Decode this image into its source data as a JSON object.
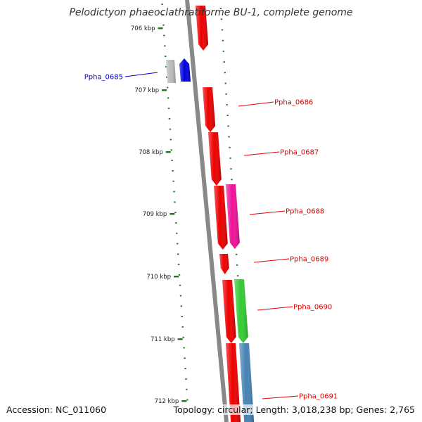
{
  "title": "Pelodictyon phaeoclathratiforme BU-1, complete genome",
  "accession": "Accession: NC_011060",
  "topology": "Topology: circular; Length: 3,018,238 bp; Genes: 2,765",
  "colors": {
    "backbone": "#888888",
    "tick": "#1a7a1a",
    "label_red": "#dd0000",
    "label_blue": "#0000cc"
  },
  "ticks": [
    "706 kbp",
    "707 kbp",
    "708 kbp",
    "709 kbp",
    "710 kbp",
    "711 kbp",
    "712 kbp"
  ],
  "genes": [
    {
      "label": "",
      "color": "#ee0000"
    },
    {
      "label": "",
      "color": "#bbbbbb"
    },
    {
      "label": "Ppha_0685",
      "color": "#0000dd",
      "label_color": "#0000cc"
    },
    {
      "label": "Ppha_0686",
      "color": "#ee0000",
      "label_color": "#dd0000"
    },
    {
      "label": "Ppha_0687",
      "color": "#ee0000",
      "label_color": "#dd0000"
    },
    {
      "label": "",
      "color": "#ee0000"
    },
    {
      "label": "Ppha_0688",
      "color": "#ee1199",
      "label_color": "#dd0000"
    },
    {
      "label": "Ppha_0689",
      "color": "#ee0000",
      "label_color": "#dd0000"
    },
    {
      "label": "Ppha_0690",
      "color": "#33cc33",
      "label_color": "#dd0000"
    },
    {
      "label": "",
      "color": "#ee0000"
    },
    {
      "label": "Ppha_0691",
      "color": "#4682b4",
      "label_color": "#dd0000"
    },
    {
      "label": "",
      "color": "#ee0000"
    }
  ]
}
